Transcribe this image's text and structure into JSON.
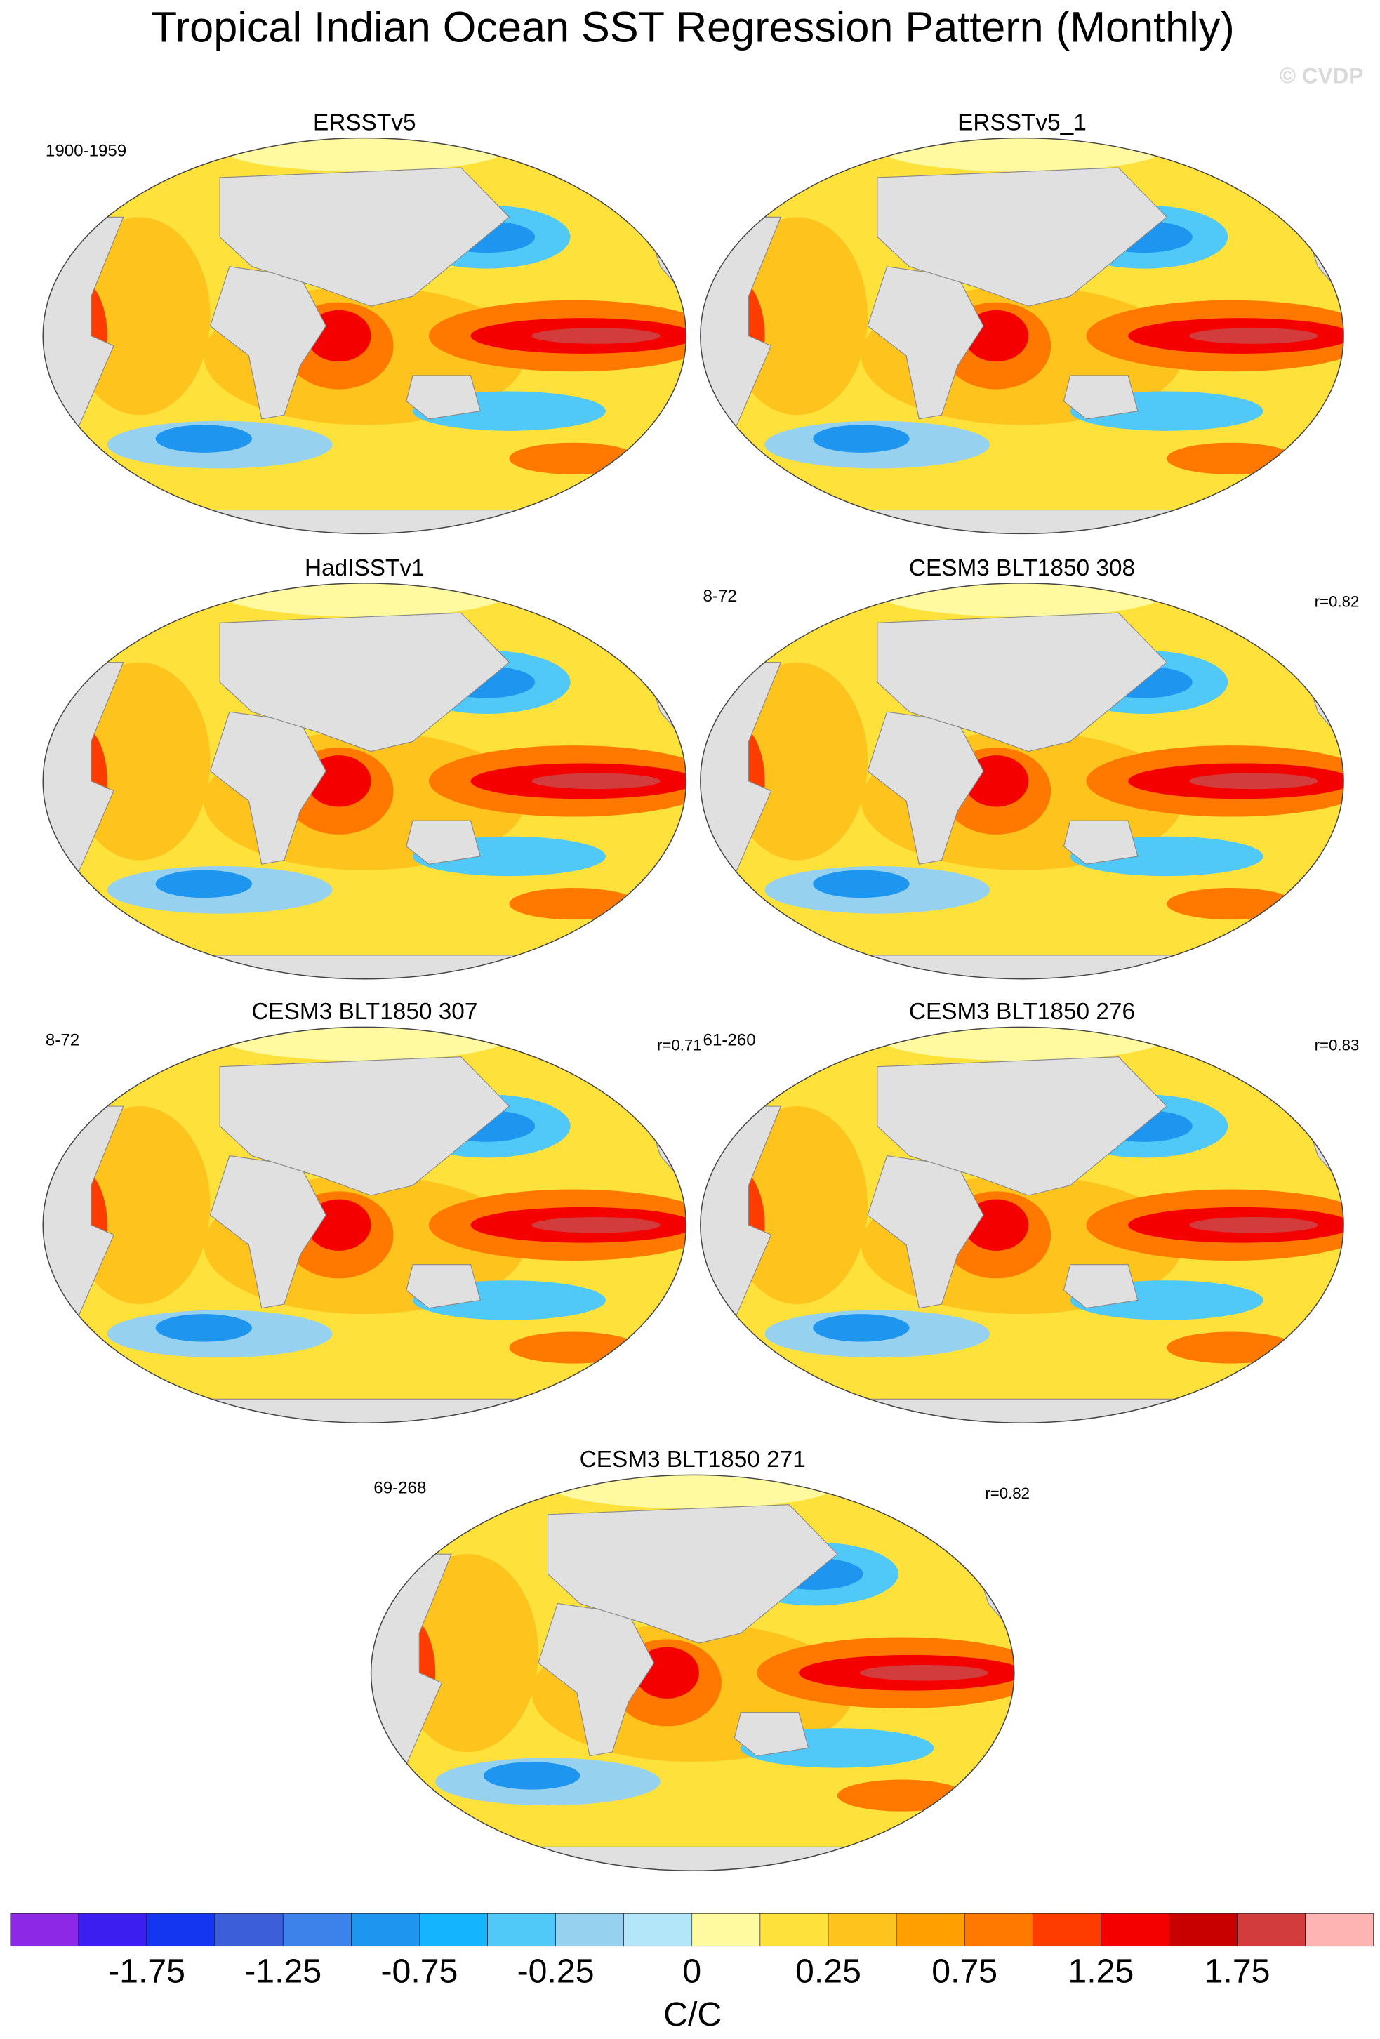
{
  "title": "Tropical Indian Ocean SST Regression Pattern (Monthly)",
  "watermark": "© CVDP",
  "panels": [
    {
      "title": "ERSSTv5",
      "left": "1900-1959"
    },
    {
      "title": "ERSSTv5_1"
    },
    {
      "title": "HadISSTv1"
    },
    {
      "title": "CESM3 BLT1850 308",
      "left": "8-72",
      "right": "r=0.82"
    },
    {
      "title": "CESM3 BLT1850 307",
      "left": "8-72",
      "right": "r=0.71"
    },
    {
      "title": "CESM3 BLT1850 276",
      "left": "61-260",
      "right": "r=0.83"
    },
    {
      "title": "CESM3 BLT1850 271",
      "left": "69-268",
      "right": "r=0.82"
    }
  ],
  "colorbar": {
    "colors": [
      "#8c28e6",
      "#3c1ef0",
      "#1436f0",
      "#3c5ed8",
      "#3c82ea",
      "#1e96f0",
      "#14b4ff",
      "#50c8f8",
      "#96d2f0",
      "#b4e6fa",
      "#fffaa0",
      "#ffe13c",
      "#ffc31e",
      "#ffa000",
      "#ff7800",
      "#ff3c00",
      "#f50000",
      "#c80000",
      "#d23c3c",
      "#ffb4b4"
    ],
    "tick_labels": [
      null,
      -1.75,
      null,
      -1.25,
      null,
      -0.75,
      null,
      -0.25,
      null,
      0,
      null,
      0.25,
      null,
      0.75,
      null,
      1.25,
      null,
      1.75,
      null
    ],
    "label": "C/C"
  }
}
